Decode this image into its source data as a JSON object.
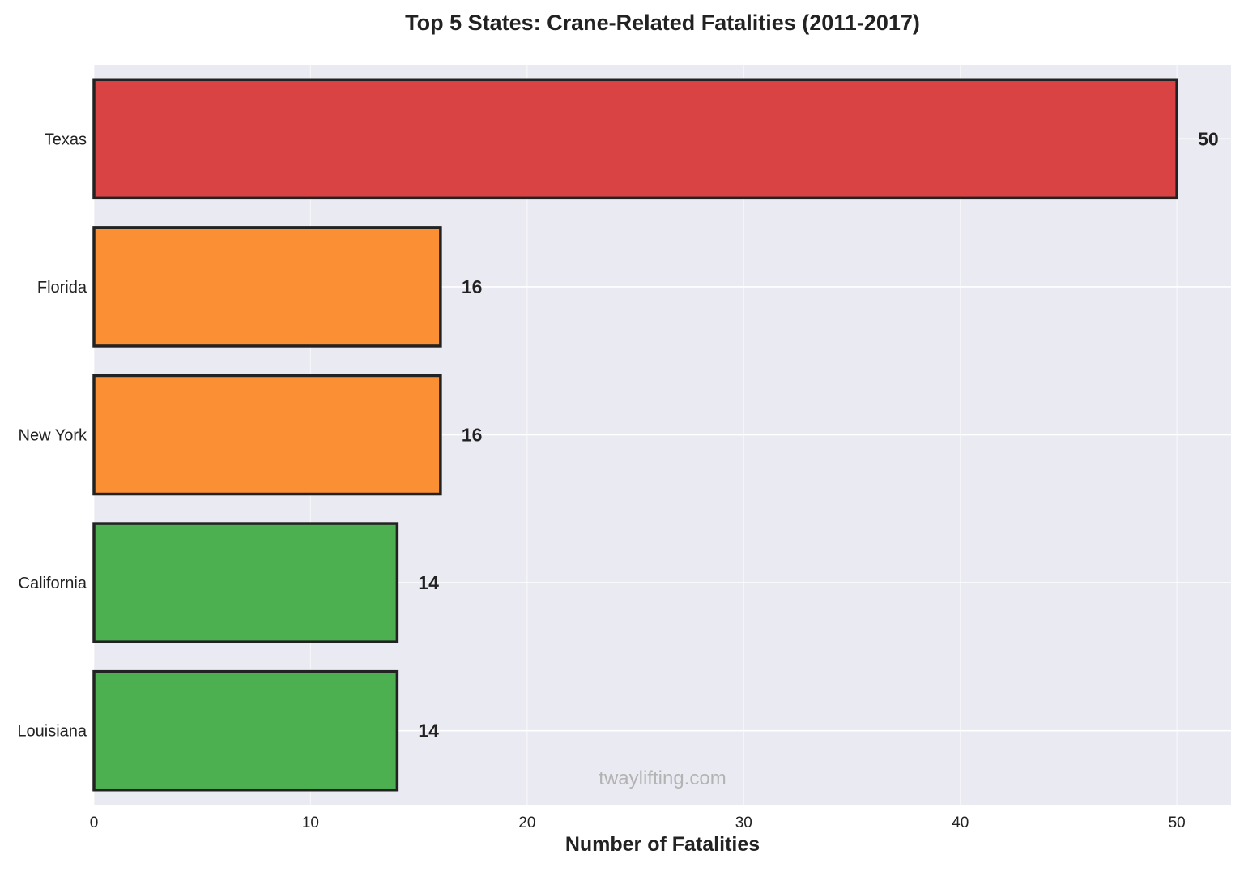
{
  "chart_data": {
    "type": "bar",
    "orientation": "horizontal",
    "title": "Top 5 States: Crane-Related Fatalities (2011-2017)",
    "xlabel": "Number of Fatalities",
    "ylabel": "",
    "categories": [
      "Texas",
      "Florida",
      "New York",
      "California",
      "Louisiana"
    ],
    "values": [
      50,
      16,
      16,
      14,
      14
    ],
    "colors": [
      "#d94343",
      "#fb8f33",
      "#fb8f33",
      "#4caf50",
      "#4caf50"
    ],
    "xlim": [
      0,
      52.5
    ],
    "xticks": [
      0,
      10,
      20,
      30,
      40,
      50
    ],
    "grid": true,
    "legend": "none",
    "background": "#eaeaf2",
    "watermark": "twaylifting.com"
  }
}
